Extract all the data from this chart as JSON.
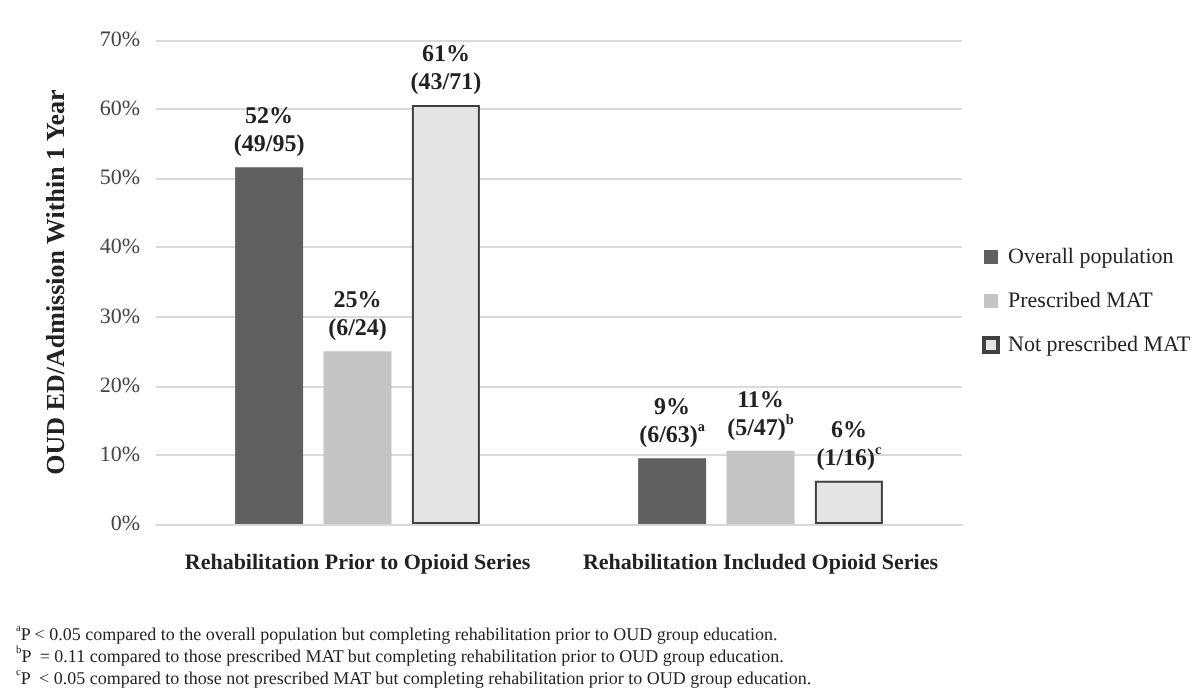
{
  "chart_data": {
    "type": "bar",
    "ylabel": "OUD ED/Admission Within 1 Year",
    "categories": [
      "Rehabilitation Prior to Opioid Series",
      "Rehabilitation Included Opioid Series"
    ],
    "series": [
      {
        "name": "Overall population",
        "color": "#606060",
        "values": [
          51.6,
          9.5
        ],
        "value_labels": [
          "52%\n(49/95)",
          "9%\n(6/63)$^{a}$"
        ]
      },
      {
        "name": "Prescribed MAT",
        "color": "#c4c4c4",
        "values": [
          25,
          10.6
        ],
        "value_labels": [
          "25%\n(6/24)",
          "11%\n(5/47)$^{b}$"
        ]
      },
      {
        "name": "Not prescribed MAT",
        "color": "#e4e4e4",
        "values": [
          60.6,
          6.25
        ],
        "value_labels": [
          "61%\n(43/71)",
          "6%\n(1/16)$^{c}$"
        ]
      }
    ],
    "ylim": [
      0,
      70
    ],
    "yticks": [
      {
        "value": 0,
        "label": "0%"
      },
      {
        "value": 10,
        "label": "10%"
      },
      {
        "value": 20,
        "label": "20%"
      },
      {
        "value": 30,
        "label": "30%"
      },
      {
        "value": 40,
        "label": "40%"
      },
      {
        "value": 50,
        "label": "50%"
      },
      {
        "value": 60,
        "label": "60%"
      },
      {
        "value": 70,
        "label": "70%"
      }
    ],
    "grid": "y",
    "legend": "right",
    "annotations": [
      "$^{a}$P < 0.05 compared to the overall population but completing rehabilitation prior to OUD group education.",
      "$^{b}$P  = 0.11 compared to those prescribed MAT but completing rehabilitation prior to OUD group education.",
      "$^{c}$P  < 0.05 compared to those not prescribed MAT but completing rehabilitation prior to OUD group education."
    ]
  }
}
